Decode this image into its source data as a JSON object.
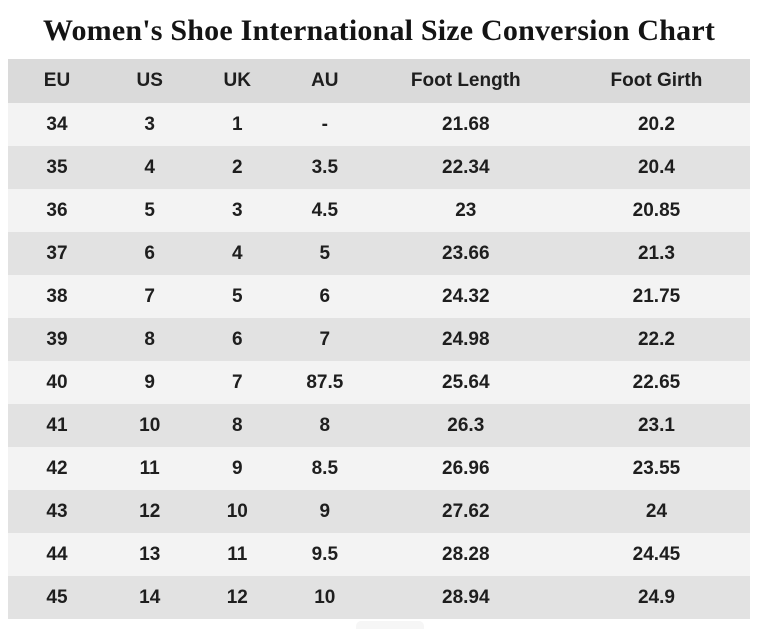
{
  "chart_data": {
    "type": "table",
    "title": "Women's Shoe International Size Conversion Chart",
    "columns": [
      "EU",
      "US",
      "UK",
      "AU",
      "Foot Length",
      "Foot Girth"
    ],
    "rows": [
      [
        "34",
        "3",
        "1",
        "-",
        "21.68",
        "20.2"
      ],
      [
        "35",
        "4",
        "2",
        "3.5",
        "22.34",
        "20.4"
      ],
      [
        "36",
        "5",
        "3",
        "4.5",
        "23",
        "20.85"
      ],
      [
        "37",
        "6",
        "4",
        "5",
        "23.66",
        "21.3"
      ],
      [
        "38",
        "7",
        "5",
        "6",
        "24.32",
        "21.75"
      ],
      [
        "39",
        "8",
        "6",
        "7",
        "24.98",
        "22.2"
      ],
      [
        "40",
        "9",
        "7",
        "87.5",
        "25.64",
        "22.65"
      ],
      [
        "41",
        "10",
        "8",
        "8",
        "26.3",
        "23.1"
      ],
      [
        "42",
        "11",
        "9",
        "8.5",
        "26.96",
        "23.55"
      ],
      [
        "43",
        "12",
        "10",
        "9",
        "27.62",
        "24"
      ],
      [
        "44",
        "13",
        "11",
        "9.5",
        "28.28",
        "24.45"
      ],
      [
        "45",
        "14",
        "12",
        "10",
        "28.94",
        "24.9"
      ]
    ]
  },
  "colors": {
    "page_bg": "#ffffff",
    "header_row_bg": "#dadada",
    "row_gray_bg": "#e2e2e2",
    "row_light_bg": "#f3f3f3",
    "text": "#1e1e1e",
    "title_text": "#141414"
  }
}
